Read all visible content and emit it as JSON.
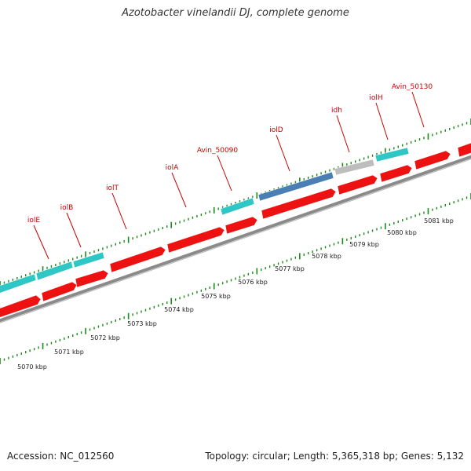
{
  "title": "Azotobacter vinelandii DJ, complete genome",
  "footer": {
    "accession": "Accession: NC_012560",
    "topology": "Topology: circular; Length: 5,365,318 bp; Genes: 5,132"
  },
  "colors": {
    "forward_strand": "#2fc6c6",
    "reverse_strand": "#ee1111",
    "highlight_gene": "#4a7fb5",
    "other_gene": "#bdbdbd",
    "backbone": "#888888",
    "tick": "#1b8a1b",
    "gene_label": "#cc0000"
  },
  "gene_labels": [
    "iolE",
    "iolB",
    "iolT",
    "iolA",
    "Avin_50090",
    "iolD",
    "idh",
    "iolH",
    "Avin_50130"
  ],
  "kbp_labels": [
    "5070 kbp",
    "5071 kbp",
    "5072 kbp",
    "5073 kbp",
    "5074 kbp",
    "5075 kbp",
    "5076 kbp",
    "5077 kbp",
    "5078 kbp",
    "5079 kbp",
    "5080 kbp",
    "5081 kbp"
  ]
}
